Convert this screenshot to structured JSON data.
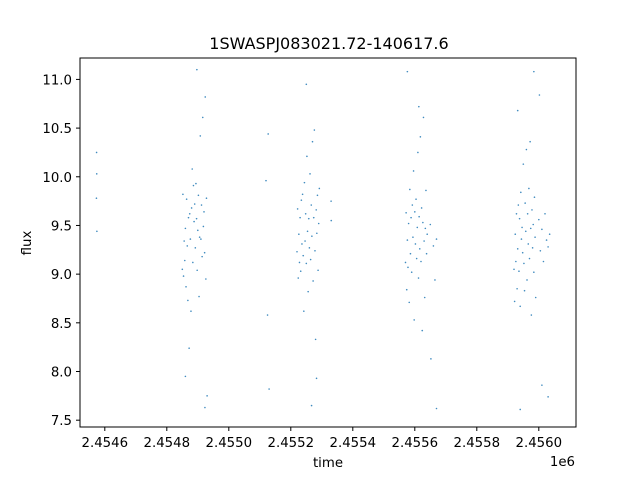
{
  "chart_data": {
    "type": "scatter",
    "title": "1SWASPJ083021.72-140617.6",
    "xlabel": "time",
    "ylabel": "flux",
    "x_offset_label": "1e6",
    "xlim": [
      2454520,
      2456120
    ],
    "ylim": [
      7.43,
      11.22
    ],
    "x_ticks": [
      2454600,
      2454800,
      2455000,
      2455200,
      2455400,
      2455600,
      2455800,
      2456000
    ],
    "x_tick_labels": [
      "2.4546",
      "2.4548",
      "2.4550",
      "2.4552",
      "2.4554",
      "2.4556",
      "2.4558",
      "2.4560"
    ],
    "y_ticks": [
      7.5,
      8.0,
      8.5,
      9.0,
      9.5,
      10.0,
      10.5,
      11.0
    ],
    "y_tick_labels": [
      "7.5",
      "8.0",
      "8.5",
      "9.0",
      "9.5",
      "10.0",
      "10.5",
      "11.0"
    ],
    "grid": false,
    "legend": "none",
    "marker_color": "#1f77b4",
    "series": [
      {
        "values": [
          [
            2454573.0,
            9.78
          ],
          [
            2454573.5,
            10.25
          ],
          [
            2454574.0,
            10.03
          ],
          [
            2454574.5,
            9.44
          ],
          [
            2454850.0,
            9.05
          ],
          [
            2454852.0,
            9.82
          ],
          [
            2454854.0,
            8.98
          ],
          [
            2454856.0,
            9.34
          ],
          [
            2454858.0,
            9.14
          ],
          [
            2454860.0,
            9.47
          ],
          [
            2454862.0,
            8.87
          ],
          [
            2454864.0,
            9.77
          ],
          [
            2454866.0,
            9.29
          ],
          [
            2454868.0,
            8.73
          ],
          [
            2454870.0,
            9.58
          ],
          [
            2454872.0,
            8.24
          ],
          [
            2454874.0,
            9.62
          ],
          [
            2454876.0,
            9.36
          ],
          [
            2454878.0,
            8.62
          ],
          [
            2454880.0,
            9.68
          ],
          [
            2454882.0,
            10.08
          ],
          [
            2454884.0,
            9.12
          ],
          [
            2454886.0,
            9.91
          ],
          [
            2454888.0,
            9.54
          ],
          [
            2454890.0,
            9.72
          ],
          [
            2454892.0,
            9.27
          ],
          [
            2454894.0,
            9.93
          ],
          [
            2454896.0,
            9.57
          ],
          [
            2454898.0,
            9.04
          ],
          [
            2454900.0,
            9.45
          ],
          [
            2454902.0,
            9.81
          ],
          [
            2454904.0,
            8.77
          ],
          [
            2454906.0,
            9.38
          ],
          [
            2454908.0,
            10.42
          ],
          [
            2454910.0,
            9.36
          ],
          [
            2454912.0,
            9.71
          ],
          [
            2454914.0,
            9.18
          ],
          [
            2454916.0,
            10.61
          ],
          [
            2454918.0,
            9.49
          ],
          [
            2454920.0,
            9.64
          ],
          [
            2454922.0,
            9.22
          ],
          [
            2454924.0,
            10.82
          ],
          [
            2454926.0,
            8.95
          ],
          [
            2454928.0,
            9.78
          ],
          [
            2454930.0,
            7.75
          ],
          [
            2454860.0,
            7.95
          ],
          [
            2454897.0,
            11.1
          ],
          [
            2454923.0,
            7.63
          ],
          [
            2455120.0,
            9.96
          ],
          [
            2455125.0,
            8.58
          ],
          [
            2455130.0,
            7.82
          ],
          [
            2455127.0,
            10.44
          ],
          [
            2455220.0,
            9.23
          ],
          [
            2455222.0,
            9.67
          ],
          [
            2455224.0,
            8.96
          ],
          [
            2455226.0,
            9.41
          ],
          [
            2455228.0,
            9.12
          ],
          [
            2455230.0,
            9.58
          ],
          [
            2455232.0,
            9.03
          ],
          [
            2455234.0,
            9.76
          ],
          [
            2455236.0,
            9.31
          ],
          [
            2455238.0,
            9.82
          ],
          [
            2455240.0,
            9.19
          ],
          [
            2455242.0,
            8.62
          ],
          [
            2455244.0,
            9.94
          ],
          [
            2455246.0,
            9.34
          ],
          [
            2455248.0,
            9.62
          ],
          [
            2455250.0,
            9.11
          ],
          [
            2455252.0,
            10.21
          ],
          [
            2455254.0,
            9.44
          ],
          [
            2455256.0,
            8.82
          ],
          [
            2455258.0,
            9.57
          ],
          [
            2455260.0,
            9.27
          ],
          [
            2455262.0,
            10.03
          ],
          [
            2455264.0,
            9.15
          ],
          [
            2455266.0,
            9.71
          ],
          [
            2455268.0,
            9.39
          ],
          [
            2455270.0,
            10.36
          ],
          [
            2455272.0,
            8.93
          ],
          [
            2455274.0,
            9.58
          ],
          [
            2455276.0,
            10.48
          ],
          [
            2455278.0,
            9.24
          ],
          [
            2455280.0,
            8.33
          ],
          [
            2455282.0,
            9.66
          ],
          [
            2455284.0,
            9.42
          ],
          [
            2455286.0,
            9.81
          ],
          [
            2455288.0,
            9.04
          ],
          [
            2455290.0,
            9.52
          ],
          [
            2455292.0,
            9.88
          ],
          [
            2455250.0,
            10.95
          ],
          [
            2455267.0,
            7.65
          ],
          [
            2455283.0,
            7.93
          ],
          [
            2455330.0,
            9.75
          ],
          [
            2455330.5,
            9.55
          ],
          [
            2455570.0,
            9.12
          ],
          [
            2455572.0,
            9.63
          ],
          [
            2455574.0,
            8.84
          ],
          [
            2455576.0,
            9.35
          ],
          [
            2455578.0,
            9.07
          ],
          [
            2455580.0,
            9.52
          ],
          [
            2455582.0,
            8.71
          ],
          [
            2455584.0,
            9.87
          ],
          [
            2455586.0,
            9.21
          ],
          [
            2455588.0,
            9.58
          ],
          [
            2455590.0,
            9.02
          ],
          [
            2455592.0,
            9.71
          ],
          [
            2455594.0,
            9.38
          ],
          [
            2455596.0,
            10.06
          ],
          [
            2455598.0,
            8.53
          ],
          [
            2455600.0,
            9.64
          ],
          [
            2455602.0,
            9.31
          ],
          [
            2455604.0,
            9.77
          ],
          [
            2455606.0,
            9.16
          ],
          [
            2455608.0,
            9.48
          ],
          [
            2455610.0,
            10.25
          ],
          [
            2455612.0,
            8.96
          ],
          [
            2455614.0,
            9.59
          ],
          [
            2455616.0,
            9.26
          ],
          [
            2455618.0,
            10.41
          ],
          [
            2455620.0,
            9.13
          ],
          [
            2455622.0,
            9.68
          ],
          [
            2455624.0,
            8.42
          ],
          [
            2455626.0,
            9.53
          ],
          [
            2455628.0,
            10.61
          ],
          [
            2455630.0,
            9.34
          ],
          [
            2455632.0,
            8.76
          ],
          [
            2455634.0,
            9.47
          ],
          [
            2455636.0,
            9.86
          ],
          [
            2455638.0,
            9.21
          ],
          [
            2455640.0,
            9.41
          ],
          [
            2455650.0,
            9.51
          ],
          [
            2455660.0,
            9.29
          ],
          [
            2455665.0,
            8.94
          ],
          [
            2455670.0,
            9.36
          ],
          [
            2455576.0,
            11.08
          ],
          [
            2455613.0,
            10.72
          ],
          [
            2455652.0,
            8.13
          ],
          [
            2455670.0,
            7.62
          ],
          [
            2455920.0,
            9.05
          ],
          [
            2455922.0,
            8.72
          ],
          [
            2455924.0,
            9.41
          ],
          [
            2455926.0,
            9.13
          ],
          [
            2455928.0,
            9.62
          ],
          [
            2455930.0,
            8.85
          ],
          [
            2455932.0,
            9.26
          ],
          [
            2455934.0,
            9.71
          ],
          [
            2455936.0,
            9.03
          ],
          [
            2455938.0,
            9.57
          ],
          [
            2455940.0,
            8.67
          ],
          [
            2455942.0,
            9.84
          ],
          [
            2455944.0,
            9.36
          ],
          [
            2455946.0,
            9.48
          ],
          [
            2455948.0,
            9.22
          ],
          [
            2455950.0,
            10.13
          ],
          [
            2455952.0,
            9.11
          ],
          [
            2455954.0,
            8.83
          ],
          [
            2455956.0,
            9.73
          ],
          [
            2455958.0,
            9.44
          ],
          [
            2455960.0,
            10.28
          ],
          [
            2455962.0,
            8.94
          ],
          [
            2455964.0,
            9.62
          ],
          [
            2455966.0,
            9.31
          ],
          [
            2455968.0,
            9.88
          ],
          [
            2455970.0,
            9.16
          ],
          [
            2455972.0,
            10.36
          ],
          [
            2455974.0,
            9.47
          ],
          [
            2455976.0,
            8.58
          ],
          [
            2455978.0,
            9.66
          ],
          [
            2455980.0,
            9.27
          ],
          [
            2455982.0,
            9.51
          ],
          [
            2455984.0,
            9.02
          ],
          [
            2455986.0,
            9.79
          ],
          [
            2455988.0,
            9.38
          ],
          [
            2455990.0,
            8.76
          ],
          [
            2456000.0,
            9.56
          ],
          [
            2456005.0,
            9.24
          ],
          [
            2456010.0,
            9.46
          ],
          [
            2456015.0,
            9.13
          ],
          [
            2456020.0,
            9.62
          ],
          [
            2456025.0,
            9.35
          ],
          [
            2456030.0,
            9.28
          ],
          [
            2456035.0,
            9.41
          ],
          [
            2455932.0,
            10.68
          ],
          [
            2455940.0,
            7.61
          ],
          [
            2455984.0,
            11.08
          ],
          [
            2456002.0,
            10.84
          ],
          [
            2456010.0,
            7.86
          ],
          [
            2456030.0,
            7.74
          ]
        ]
      }
    ]
  }
}
